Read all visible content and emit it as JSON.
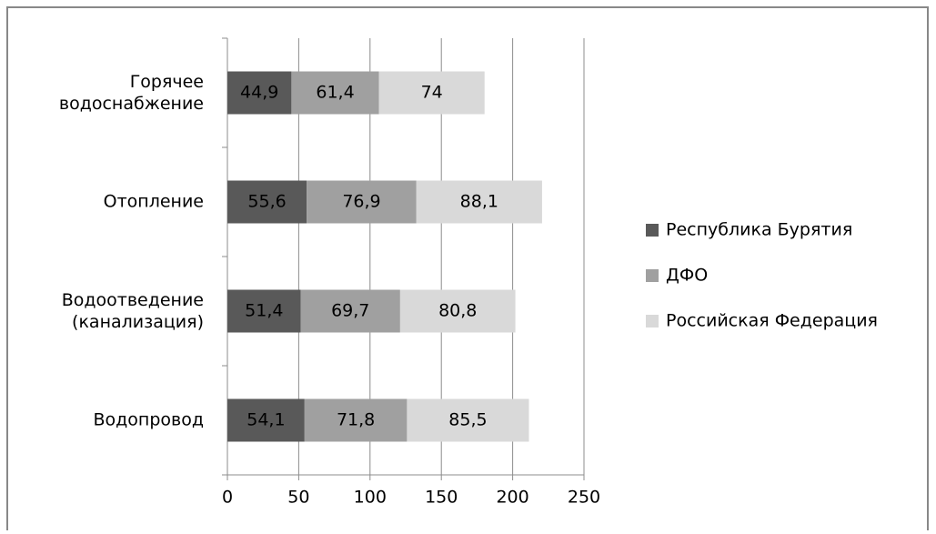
{
  "chart_data": {
    "type": "stacked-bar-horizontal",
    "categories": [
      "Горячее водоснабжение",
      "Отопление",
      "Водоотведение (канализация)",
      "Водопровод"
    ],
    "series": [
      {
        "name": "Республика Бурятия",
        "color": "#595959",
        "values": [
          44.9,
          55.6,
          51.4,
          54.1
        ],
        "value_labels": [
          "44,9",
          "55,6",
          "51,4",
          "54,1"
        ]
      },
      {
        "name": "ДФО",
        "color": "#a0a0a0",
        "values": [
          61.4,
          76.9,
          69.7,
          71.8
        ],
        "value_labels": [
          "61,4",
          "76,9",
          "69,7",
          "71,8"
        ]
      },
      {
        "name": "Российская Федерация",
        "color": "#d9d9d9",
        "values": [
          74,
          88.1,
          80.8,
          85.5
        ],
        "value_labels": [
          "74",
          "88,1",
          "80,8",
          "85,5"
        ]
      }
    ],
    "xlim": [
      0,
      250
    ],
    "xticks": [
      0,
      50,
      100,
      150,
      200,
      250
    ],
    "grid": true,
    "legend": "right"
  }
}
